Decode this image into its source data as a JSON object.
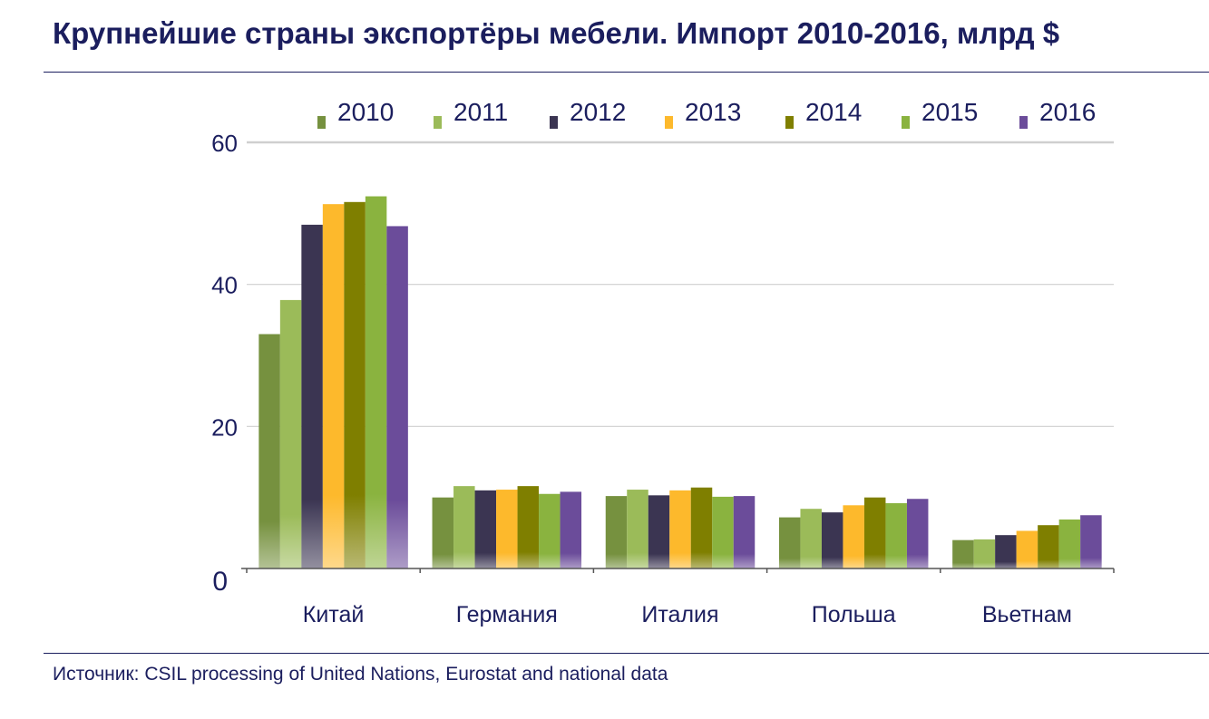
{
  "title": "Крупнейшие страны экспортёры мебели. Импорт 2010-2016, млрд $",
  "source": "Источник: CSIL processing of United Nations, Eurostat and national data",
  "colors": {
    "text": "#1b1e5e",
    "grid": "#cfcfcf",
    "axis": "#555555",
    "series": [
      "#76913f",
      "#9bbb59",
      "#3b3552",
      "#fdb92c",
      "#7f7f00",
      "#8ab33f",
      "#6b4c9a"
    ]
  },
  "chart_data": {
    "type": "bar",
    "title": "Крупнейшие страны экспортёры мебели. Импорт 2010-2016, млрд $",
    "xlabel": "",
    "ylabel": "",
    "ylim": [
      0,
      60
    ],
    "yticks": [
      "0",
      "20",
      "40",
      "60"
    ],
    "grid": true,
    "legend": "top",
    "categories": [
      "Китай",
      "Германия",
      "Италия",
      "Польша",
      "Вьетнам"
    ],
    "series": [
      {
        "name": "2010",
        "values": [
          33.0,
          10.0,
          10.2,
          7.2,
          4.0
        ]
      },
      {
        "name": "2011",
        "values": [
          37.8,
          11.6,
          11.1,
          8.4,
          4.1
        ]
      },
      {
        "name": "2012",
        "values": [
          48.4,
          11.0,
          10.3,
          7.9,
          4.7
        ]
      },
      {
        "name": "2013",
        "values": [
          51.3,
          11.1,
          11.0,
          8.9,
          5.3
        ]
      },
      {
        "name": "2014",
        "values": [
          51.6,
          11.6,
          11.4,
          10.0,
          6.1
        ]
      },
      {
        "name": "2015",
        "values": [
          52.4,
          10.5,
          10.1,
          9.2,
          6.9
        ]
      },
      {
        "name": "2016",
        "values": [
          48.2,
          10.8,
          10.2,
          9.8,
          7.5
        ]
      }
    ]
  }
}
